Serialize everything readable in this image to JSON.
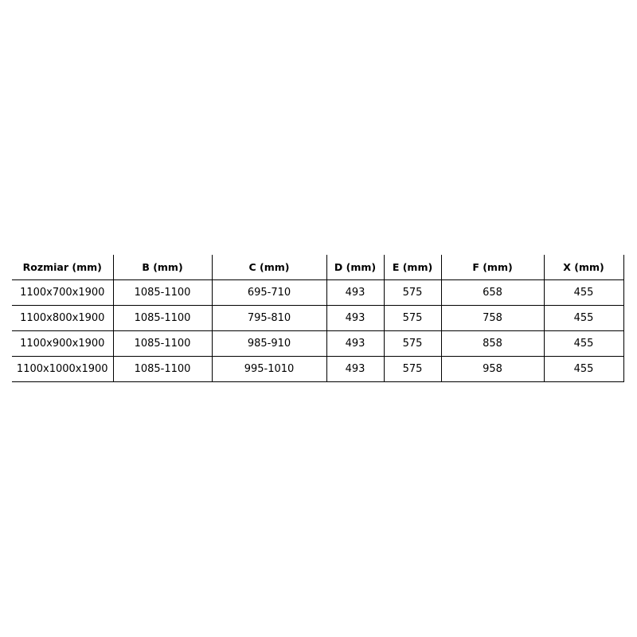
{
  "table": {
    "headers": [
      "Rozmiar (mm)",
      "B (mm)",
      "C (mm)",
      "D (mm)",
      "E (mm)",
      "F (mm)",
      "X (mm)"
    ],
    "rows": [
      [
        "1100x700x1900",
        "1085-1100",
        "695-710",
        "493",
        "575",
        "658",
        "455"
      ],
      [
        "1100x800x1900",
        "1085-1100",
        "795-810",
        "493",
        "575",
        "758",
        "455"
      ],
      [
        "1100x900x1900",
        "1085-1100",
        "985-910",
        "493",
        "575",
        "858",
        "455"
      ],
      [
        "1100x1000x1900",
        "1085-1100",
        "995-1010",
        "493",
        "575",
        "958",
        "455"
      ]
    ]
  }
}
